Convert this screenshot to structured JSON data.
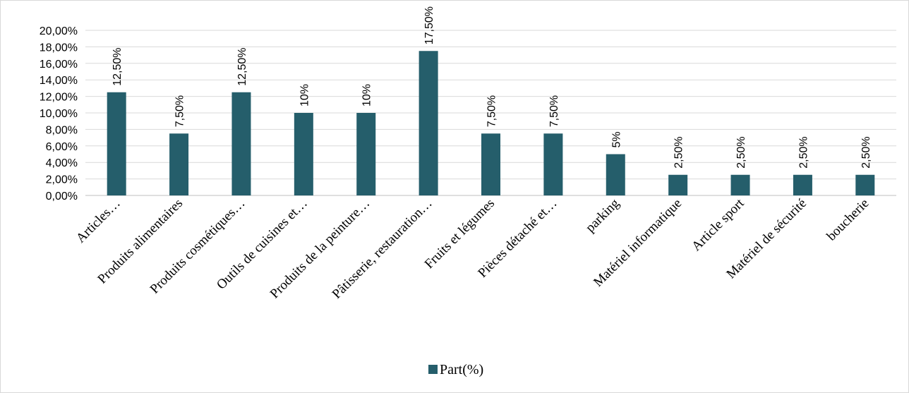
{
  "chart_data": {
    "type": "bar",
    "categories": [
      "Articles…",
      "Produits alimentaires",
      "Produits cosmétiques…",
      "Outils de cuisines et…",
      "Produits de la peinture…",
      "Pâtisserie, restauration…",
      "Fruits et légumes",
      "Pièces détaché et…",
      "parking",
      "Matériel informatique",
      "Article sport",
      "Matériel de sécurité",
      "boucherie"
    ],
    "series": [
      {
        "name": "Part(%)",
        "values": [
          12.5,
          7.5,
          12.5,
          10,
          10,
          17.5,
          7.5,
          7.5,
          5,
          2.5,
          2.5,
          2.5,
          2.5
        ],
        "data_labels": [
          "12,50%",
          "7,50%",
          "12,50%",
          "10%",
          "10%",
          "17,50%",
          "7,50%",
          "7,50%",
          "5%",
          "2,50%",
          "2,50%",
          "2,50%",
          "2,50%"
        ],
        "color": "#255e6b"
      }
    ],
    "yticks": [
      0,
      2,
      4,
      6,
      8,
      10,
      12,
      14,
      16,
      18,
      20
    ],
    "ytick_labels": [
      "0,00%",
      "2,00%",
      "4,00%",
      "6,00%",
      "8,00%",
      "10,00%",
      "12,00%",
      "14,00%",
      "16,00%",
      "18,00%",
      "20,00%"
    ],
    "ylim": [
      0,
      20
    ],
    "title": "",
    "xlabel": "",
    "ylabel": "",
    "grid": true,
    "legend_position": "bottom"
  }
}
